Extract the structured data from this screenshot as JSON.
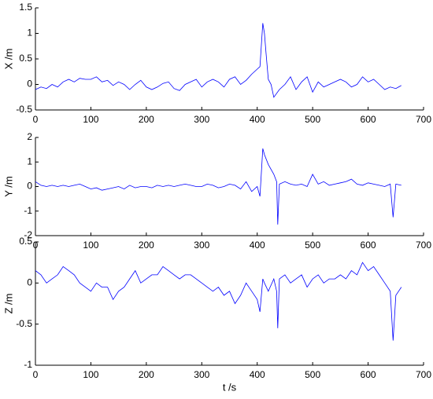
{
  "chart_data": [
    {
      "type": "line",
      "ylabel": "X /m",
      "x": [
        0,
        10,
        20,
        30,
        40,
        50,
        60,
        70,
        80,
        90,
        100,
        110,
        120,
        130,
        140,
        150,
        160,
        170,
        180,
        190,
        200,
        210,
        220,
        230,
        240,
        250,
        260,
        270,
        280,
        290,
        300,
        310,
        320,
        330,
        340,
        350,
        360,
        370,
        380,
        390,
        400,
        405,
        410,
        413,
        416,
        420,
        425,
        430,
        440,
        450,
        460,
        470,
        480,
        490,
        500,
        510,
        520,
        530,
        540,
        550,
        560,
        570,
        580,
        590,
        600,
        610,
        620,
        630,
        640,
        650,
        660
      ],
      "series": [
        {
          "color": "#0000ff",
          "values": [
            -0.1,
            -0.05,
            -0.08,
            0.0,
            -0.05,
            0.05,
            0.1,
            0.05,
            0.12,
            0.1,
            0.1,
            0.15,
            0.05,
            0.08,
            -0.02,
            0.05,
            0.0,
            -0.1,
            0.0,
            0.08,
            -0.05,
            -0.1,
            -0.05,
            0.02,
            0.05,
            -0.08,
            -0.12,
            0.0,
            0.05,
            0.1,
            -0.05,
            0.05,
            0.1,
            0.05,
            -0.05,
            0.1,
            0.15,
            0.0,
            0.08,
            0.2,
            0.3,
            0.35,
            1.2,
            1.0,
            0.6,
            0.1,
            0.0,
            -0.25,
            -0.1,
            0.0,
            0.15,
            -0.1,
            0.05,
            0.15,
            -0.15,
            0.05,
            -0.05,
            0.0,
            0.05,
            0.1,
            0.05,
            -0.05,
            0.0,
            0.15,
            0.05,
            0.1,
            0.0,
            -0.1,
            -0.05,
            -0.08,
            -0.02
          ]
        }
      ],
      "xlim": [
        0,
        700
      ],
      "xticks": [
        0,
        100,
        200,
        300,
        400,
        500,
        600,
        700
      ],
      "ylim": [
        -0.5,
        1.5
      ],
      "yticks": [
        -0.5,
        0,
        0.5,
        1,
        1.5
      ]
    },
    {
      "type": "line",
      "ylabel": "Y /m",
      "x": [
        0,
        10,
        20,
        30,
        40,
        50,
        60,
        70,
        80,
        90,
        100,
        110,
        120,
        130,
        140,
        150,
        160,
        170,
        180,
        190,
        200,
        210,
        220,
        230,
        240,
        250,
        260,
        270,
        280,
        290,
        300,
        310,
        320,
        330,
        340,
        350,
        360,
        370,
        380,
        390,
        400,
        405,
        410,
        413,
        420,
        430,
        435,
        437,
        440,
        450,
        460,
        470,
        480,
        490,
        500,
        510,
        520,
        530,
        540,
        550,
        560,
        570,
        580,
        590,
        600,
        610,
        620,
        630,
        640,
        645,
        650,
        660
      ],
      "series": [
        {
          "color": "#0000ff",
          "values": [
            0.2,
            0.05,
            0.0,
            0.05,
            0.0,
            0.05,
            0.0,
            0.05,
            0.1,
            0.0,
            -0.1,
            -0.05,
            -0.15,
            -0.1,
            -0.05,
            0.0,
            -0.1,
            0.05,
            -0.05,
            0.0,
            0.0,
            -0.05,
            0.05,
            0.0,
            0.05,
            0.0,
            0.05,
            0.1,
            0.05,
            0.0,
            0.0,
            0.1,
            0.05,
            -0.05,
            0.0,
            0.1,
            0.05,
            -0.1,
            0.2,
            -0.2,
            0.0,
            -0.4,
            1.55,
            1.3,
            0.9,
            0.5,
            0.2,
            -1.55,
            0.1,
            0.2,
            0.1,
            0.05,
            0.1,
            0.0,
            0.5,
            0.1,
            0.2,
            0.05,
            0.1,
            0.15,
            0.2,
            0.3,
            0.1,
            0.05,
            0.15,
            0.1,
            0.05,
            0.0,
            0.1,
            -1.25,
            0.1,
            0.05
          ]
        }
      ],
      "xlim": [
        0,
        700
      ],
      "xticks": [
        0,
        100,
        200,
        300,
        400,
        500,
        600,
        700
      ],
      "ylim": [
        -2,
        2
      ],
      "yticks": [
        -2,
        -1,
        0,
        1,
        2
      ]
    },
    {
      "type": "line",
      "ylabel": "Z /m",
      "xlabel": "t /s",
      "x": [
        0,
        10,
        20,
        30,
        40,
        50,
        60,
        70,
        80,
        90,
        100,
        110,
        120,
        130,
        140,
        150,
        160,
        170,
        180,
        190,
        200,
        210,
        220,
        230,
        240,
        250,
        260,
        270,
        280,
        290,
        300,
        310,
        320,
        330,
        340,
        350,
        360,
        370,
        380,
        390,
        400,
        405,
        410,
        413,
        420,
        430,
        435,
        437,
        440,
        450,
        460,
        470,
        480,
        490,
        500,
        510,
        520,
        530,
        540,
        550,
        560,
        570,
        580,
        590,
        600,
        610,
        620,
        630,
        640,
        645,
        650,
        660
      ],
      "series": [
        {
          "color": "#0000ff",
          "values": [
            0.15,
            0.1,
            0.0,
            0.05,
            0.1,
            0.2,
            0.15,
            0.1,
            0.0,
            -0.05,
            -0.1,
            0.0,
            -0.05,
            -0.05,
            -0.2,
            -0.1,
            -0.05,
            0.05,
            0.15,
            0.0,
            0.05,
            0.1,
            0.1,
            0.2,
            0.15,
            0.1,
            0.05,
            0.1,
            0.1,
            0.05,
            0.0,
            -0.05,
            -0.1,
            -0.05,
            -0.15,
            -0.1,
            -0.25,
            -0.15,
            0.0,
            -0.1,
            -0.2,
            -0.35,
            0.05,
            0.0,
            -0.1,
            0.05,
            -0.1,
            -0.55,
            0.05,
            0.1,
            0.0,
            0.05,
            0.1,
            -0.05,
            0.05,
            0.1,
            0.0,
            0.05,
            0.05,
            0.1,
            0.05,
            0.15,
            0.1,
            0.25,
            0.15,
            0.2,
            0.1,
            0.0,
            -0.1,
            -0.7,
            -0.15,
            -0.05
          ]
        }
      ],
      "xlim": [
        0,
        700
      ],
      "xticks": [
        0,
        100,
        200,
        300,
        400,
        500,
        600,
        700
      ],
      "ylim": [
        -1,
        0.5
      ],
      "yticks": [
        -1,
        -0.5,
        0,
        0.5
      ]
    }
  ]
}
